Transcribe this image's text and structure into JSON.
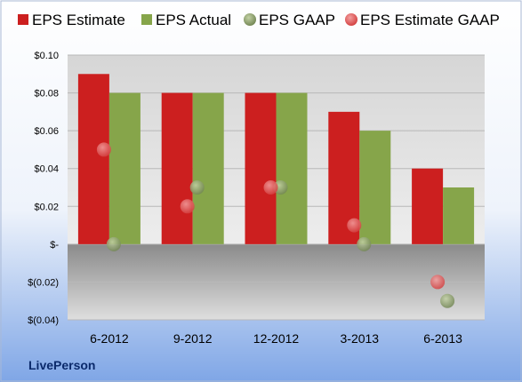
{
  "chart_data": {
    "type": "bar",
    "categories": [
      "6-2012",
      "9-2012",
      "12-2012",
      "3-2013",
      "6-2013"
    ],
    "series": [
      {
        "name": "EPS Estimate",
        "kind": "bar",
        "color": "#cc1f1f",
        "values": [
          0.09,
          0.08,
          0.08,
          0.07,
          0.04
        ]
      },
      {
        "name": "EPS Actual",
        "kind": "bar",
        "color": "#86a54a",
        "values": [
          0.08,
          0.08,
          0.08,
          0.06,
          0.03
        ]
      },
      {
        "name": "EPS GAAP",
        "kind": "point",
        "color": "#7d8f5f",
        "values": [
          0.0,
          0.03,
          0.03,
          0.0,
          -0.03
        ]
      },
      {
        "name": "EPS Estimate GAAP",
        "kind": "point",
        "color": "#e05555",
        "values": [
          0.05,
          0.02,
          0.03,
          0.01,
          -0.02
        ]
      }
    ],
    "ylim": [
      -0.04,
      0.1
    ],
    "yticks": [
      0.1,
      0.08,
      0.06,
      0.04,
      0.02,
      0.0,
      -0.02,
      -0.04
    ],
    "ytick_labels": [
      "$0.10",
      "$0.08",
      "$0.06",
      "$0.04",
      "$0.02",
      "$-",
      "$(0.02)",
      "$(0.04)"
    ],
    "legend_position": "top",
    "grid": true,
    "title": "",
    "xlabel": "",
    "ylabel": ""
  },
  "brand": "LivePerson"
}
